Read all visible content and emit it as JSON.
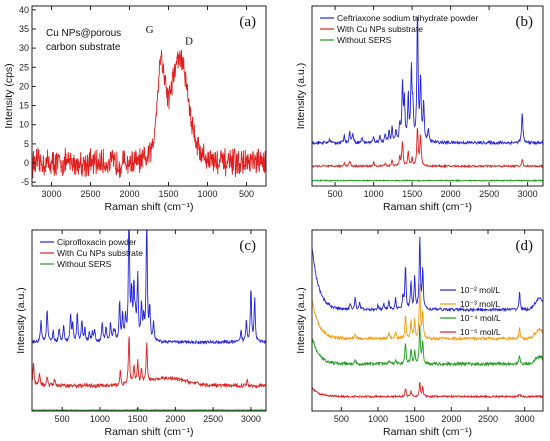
{
  "colors": {
    "blue": "#2424d9",
    "red": "#e02020",
    "green": "#1f9a1f",
    "orange": "#f39c12",
    "axis": "#222222"
  },
  "chart_data": [
    {
      "panel": "(a)",
      "type": "line",
      "annotation": [
        "Cu NPs@porous",
        "carbon substrate"
      ],
      "peak_labels": [
        {
          "text": "G",
          "x": 1640,
          "y": 24
        },
        {
          "text": "D",
          "x": 1340,
          "y": 21
        }
      ],
      "xlabel": "Raman shift (cm⁻¹)",
      "ylabel": "Intensity (cps)",
      "xlim": [
        3250,
        250
      ],
      "ylim": [
        -6,
        41
      ],
      "x_reversed": true,
      "xticks": [
        3000,
        2500,
        2000,
        1500,
        1000,
        500
      ],
      "yticks": [
        -5,
        0,
        5,
        10,
        15,
        20,
        25,
        30,
        35,
        40
      ],
      "series": [
        {
          "color": "red",
          "x": [
            3250,
            3000,
            2750,
            2500,
            2250,
            2000,
            1800,
            1700,
            1650,
            1600,
            1550,
            1500,
            1450,
            1400,
            1350,
            1300,
            1250,
            1200,
            1100,
            1000,
            900,
            800,
            700,
            600,
            500,
            400,
            300,
            250
          ],
          "y": [
            0,
            0,
            0,
            0,
            0,
            0,
            0.5,
            4,
            16,
            29,
            22,
            17,
            21,
            26,
            28,
            24,
            18,
            10,
            3,
            1,
            0.5,
            0,
            0,
            0,
            0,
            0,
            0,
            0
          ],
          "noise": 2.8
        }
      ]
    },
    {
      "panel": "(b)",
      "type": "line",
      "xlabel": "Raman shift (cm⁻¹)",
      "ylabel": "Intensity (a.u.)",
      "xlim": [
        200,
        3200
      ],
      "xticks": [
        500,
        1000,
        1500,
        2000,
        2500,
        3000
      ],
      "yticks": [],
      "legend_position": "top-left",
      "series": [
        {
          "name": "Ceftriaxone sodium trihydrate powder",
          "color": "blue",
          "base": 0.24,
          "noise": 0.008,
          "peaks": [
            [
              430,
              0.02
            ],
            [
              620,
              0.04
            ],
            [
              690,
              0.06
            ],
            [
              730,
              0.05
            ],
            [
              850,
              0.03
            ],
            [
              1000,
              0.03
            ],
            [
              1080,
              0.04
            ],
            [
              1150,
              0.05
            ],
            [
              1200,
              0.06
            ],
            [
              1240,
              0.08
            ],
            [
              1290,
              0.07
            ],
            [
              1340,
              0.1
            ],
            [
              1375,
              0.32
            ],
            [
              1400,
              0.22
            ],
            [
              1450,
              0.25
            ],
            [
              1490,
              0.4
            ],
            [
              1510,
              0.18
            ],
            [
              1570,
              0.72
            ],
            [
              1610,
              0.35
            ],
            [
              1650,
              0.22
            ],
            [
              1710,
              0.07
            ],
            [
              2930,
              0.17
            ]
          ]
        },
        {
          "name": "With Cu NPs substrate",
          "color": "red",
          "base": 0.11,
          "noise": 0.005,
          "peaks": [
            [
              620,
              0.02
            ],
            [
              690,
              0.03
            ],
            [
              1000,
              0.02
            ],
            [
              1150,
              0.02
            ],
            [
              1240,
              0.03
            ],
            [
              1340,
              0.05
            ],
            [
              1375,
              0.14
            ],
            [
              1450,
              0.08
            ],
            [
              1500,
              0.05
            ],
            [
              1570,
              0.22
            ],
            [
              1610,
              0.17
            ],
            [
              2930,
              0.04
            ]
          ]
        },
        {
          "name": "Without SERS",
          "color": "green",
          "base": 0.03,
          "noise": 0.003,
          "peaks": []
        }
      ]
    },
    {
      "panel": "(c)",
      "type": "line",
      "xlabel": "Raman shift (cm⁻¹)",
      "ylabel": "Intensity (a.u.)",
      "xlim": [
        100,
        3200
      ],
      "xticks": [
        500,
        1000,
        1500,
        2000,
        2500,
        3000
      ],
      "yticks": [],
      "legend_position": "top-left",
      "series": [
        {
          "name": "Ciprofloxacin powder",
          "color": "blue",
          "base": 0.38,
          "noise": 0.008,
          "peaks": [
            [
              220,
              0.12
            ],
            [
              300,
              0.18
            ],
            [
              380,
              0.06
            ],
            [
              460,
              0.07
            ],
            [
              520,
              0.1
            ],
            [
              610,
              0.15
            ],
            [
              640,
              0.1
            ],
            [
              700,
              0.16
            ],
            [
              760,
              0.12
            ],
            [
              800,
              0.08
            ],
            [
              860,
              0.05
            ],
            [
              900,
              0.05
            ],
            [
              930,
              0.07
            ],
            [
              1030,
              0.11
            ],
            [
              1080,
              0.08
            ],
            [
              1140,
              0.1
            ],
            [
              1180,
              0.06
            ],
            [
              1200,
              0.05
            ],
            [
              1260,
              0.22
            ],
            [
              1300,
              0.15
            ],
            [
              1340,
              0.12
            ],
            [
              1385,
              0.75
            ],
            [
              1420,
              0.25
            ],
            [
              1450,
              0.3
            ],
            [
              1470,
              0.12
            ],
            [
              1500,
              0.35
            ],
            [
              1550,
              0.2
            ],
            [
              1580,
              0.12
            ],
            [
              1620,
              0.68
            ],
            [
              1660,
              0.18
            ],
            [
              1710,
              0.1
            ],
            [
              2870,
              0.06
            ],
            [
              2940,
              0.12
            ],
            [
              3000,
              0.3
            ],
            [
              3050,
              0.24
            ]
          ]
        },
        {
          "name": "With Cu NPs substrate",
          "color": "red",
          "base": 0.14,
          "noise": 0.01,
          "hump": [
            1900,
            350,
            0.04
          ],
          "peaks": [
            [
              120,
              0.12
            ],
            [
              200,
              0.07
            ],
            [
              300,
              0.05
            ],
            [
              400,
              0.04
            ],
            [
              1270,
              0.08
            ],
            [
              1385,
              0.28
            ],
            [
              1450,
              0.1
            ],
            [
              1500,
              0.12
            ],
            [
              1550,
              0.08
            ],
            [
              1620,
              0.22
            ],
            [
              2950,
              0.03
            ]
          ]
        },
        {
          "name": "Without SERS",
          "color": "green",
          "base": 0.005,
          "noise": 0.002,
          "peaks": [
            [
              1500,
              0.012
            ]
          ]
        }
      ]
    },
    {
      "panel": "(d)",
      "type": "line",
      "xlabel": "Raman shift (cm⁻¹)",
      "ylabel": "Intensity (a.u.)",
      "xlim": [
        100,
        3250
      ],
      "xticks": [
        500,
        1000,
        1500,
        2000,
        2500,
        3000
      ],
      "yticks": [],
      "legend_position": "center-right",
      "series": [
        {
          "name": "10⁻² mol/L",
          "color": "blue",
          "base": 0.56,
          "noise": 0.008,
          "rise": [
            100,
            90,
            0.35
          ],
          "hump": [
            3200,
            80,
            0.06
          ],
          "peaks": [
            [
              620,
              0.04
            ],
            [
              690,
              0.07
            ],
            [
              750,
              0.04
            ],
            [
              1000,
              0.03
            ],
            [
              1080,
              0.03
            ],
            [
              1150,
              0.05
            ],
            [
              1240,
              0.06
            ],
            [
              1340,
              0.08
            ],
            [
              1375,
              0.24
            ],
            [
              1450,
              0.15
            ],
            [
              1500,
              0.18
            ],
            [
              1570,
              0.4
            ],
            [
              1610,
              0.22
            ],
            [
              2930,
              0.1
            ]
          ]
        },
        {
          "name": "10⁻³ mol/L",
          "color": "orange",
          "base": 0.4,
          "noise": 0.008,
          "rise": [
            100,
            90,
            0.22
          ],
          "hump": [
            3200,
            80,
            0.05
          ],
          "peaks": [
            [
              690,
              0.03
            ],
            [
              1150,
              0.03
            ],
            [
              1240,
              0.04
            ],
            [
              1375,
              0.14
            ],
            [
              1450,
              0.1
            ],
            [
              1500,
              0.1
            ],
            [
              1570,
              0.3
            ],
            [
              1610,
              0.14
            ],
            [
              2930,
              0.06
            ]
          ]
        },
        {
          "name": "10⁻⁴ mol/L",
          "color": "green",
          "base": 0.26,
          "noise": 0.008,
          "rise": [
            100,
            90,
            0.15
          ],
          "hump": [
            3200,
            80,
            0.04
          ],
          "peaks": [
            [
              690,
              0.02
            ],
            [
              1150,
              0.02
            ],
            [
              1240,
              0.03
            ],
            [
              1375,
              0.12
            ],
            [
              1450,
              0.08
            ],
            [
              1500,
              0.07
            ],
            [
              1570,
              0.22
            ],
            [
              1610,
              0.12
            ],
            [
              2930,
              0.05
            ]
          ]
        },
        {
          "name": "10⁻⁵ mol/L",
          "color": "red",
          "base": 0.08,
          "noise": 0.005,
          "rise": [
            100,
            90,
            0.05
          ],
          "peaks": [
            [
              1375,
              0.04
            ],
            [
              1450,
              0.03
            ],
            [
              1570,
              0.08
            ],
            [
              1610,
              0.05
            ],
            [
              2930,
              0.015
            ]
          ]
        }
      ]
    }
  ]
}
